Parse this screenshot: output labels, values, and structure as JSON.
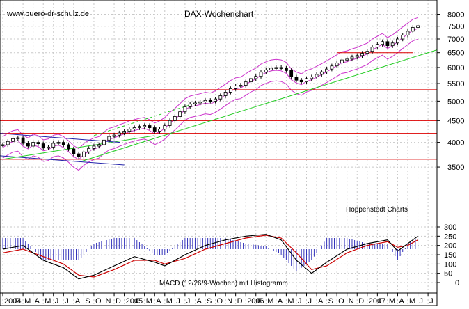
{
  "watermark": "www.buero-dr-schulz.de",
  "chart_title": "DAX-Wochenchart",
  "source_label": "Hoppenstedt Charts",
  "indicator_label": "MACD (12/26/9-Wochen) mit Histogramm",
  "colors": {
    "background": "#ffffff",
    "grid": "#c8c8c8",
    "candle": "#000000",
    "bollinger": "#cc33cc",
    "trendline": "#22cc22",
    "support_line": "#dd0000",
    "channel_line": "#2222aa",
    "macd_line": "#000000",
    "signal_line": "#cc0000",
    "histogram": "#3333bb"
  },
  "chart_data": [
    {
      "type": "candlestick",
      "title": "DAX-Wochenchart",
      "yscale": "log",
      "ylim": [
        2900,
        8200
      ],
      "yticks": [
        8000,
        7500,
        7000,
        6500,
        6000,
        5500,
        5000,
        4500,
        4000,
        3500
      ],
      "x_axis_labels": [
        "2004",
        "F",
        "M",
        "A",
        "M",
        "J",
        "J",
        "A",
        "S",
        "O",
        "N",
        "D",
        "2005",
        "F",
        "M",
        "A",
        "M",
        "J",
        "J",
        "A",
        "S",
        "O",
        "N",
        "D",
        "2006",
        "F",
        "M",
        "A",
        "M",
        "J",
        "J",
        "A",
        "S",
        "O",
        "N",
        "D",
        "2007",
        "F",
        "M",
        "A",
        "M",
        "J",
        "J"
      ],
      "x_tick_months": [
        0,
        1,
        2,
        3,
        4,
        5,
        6,
        7,
        8,
        9,
        10,
        11,
        12,
        13,
        14,
        15,
        16,
        17,
        18,
        19,
        20,
        21,
        22,
        23,
        24,
        25,
        26,
        27,
        28,
        29,
        30,
        31,
        32,
        33,
        34,
        35,
        36,
        37,
        38,
        39,
        40,
        41,
        42
      ],
      "series": [
        {
          "name": "DAX weekly close (approx.)",
          "points": [
            [
              0,
              3950
            ],
            [
              0.5,
              4020
            ],
            [
              1,
              4080
            ],
            [
              1.5,
              4100
            ],
            [
              2,
              3980
            ],
            [
              2.5,
              3920
            ],
            [
              3,
              4000
            ],
            [
              3.5,
              3970
            ],
            [
              4,
              3880
            ],
            [
              4.5,
              3900
            ],
            [
              5,
              3980
            ],
            [
              5.5,
              4000
            ],
            [
              6,
              3950
            ],
            [
              6.5,
              3860
            ],
            [
              7,
              3760
            ],
            [
              7.5,
              3700
            ],
            [
              8,
              3800
            ],
            [
              8.5,
              3870
            ],
            [
              9,
              3920
            ],
            [
              9.5,
              3950
            ],
            [
              10,
              4050
            ],
            [
              10.5,
              4130
            ],
            [
              11,
              4160
            ],
            [
              11.5,
              4210
            ],
            [
              12,
              4250
            ],
            [
              12.5,
              4300
            ],
            [
              13,
              4330
            ],
            [
              13.5,
              4360
            ],
            [
              14,
              4380
            ],
            [
              14.5,
              4330
            ],
            [
              15,
              4250
            ],
            [
              15.5,
              4300
            ],
            [
              16,
              4380
            ],
            [
              16.5,
              4500
            ],
            [
              17,
              4600
            ],
            [
              17.5,
              4720
            ],
            [
              18,
              4850
            ],
            [
              18.5,
              4920
            ],
            [
              19,
              4950
            ],
            [
              19.5,
              4980
            ],
            [
              20,
              5020
            ],
            [
              20.5,
              5000
            ],
            [
              21,
              5060
            ],
            [
              21.5,
              5150
            ],
            [
              22,
              5250
            ],
            [
              22.5,
              5350
            ],
            [
              23,
              5430
            ],
            [
              23.5,
              5450
            ],
            [
              24,
              5550
            ],
            [
              24.5,
              5650
            ],
            [
              25,
              5720
            ],
            [
              25.5,
              5850
            ],
            [
              26,
              5920
            ],
            [
              26.5,
              5980
            ],
            [
              27,
              6000
            ],
            [
              27.5,
              5980
            ],
            [
              28,
              5900
            ],
            [
              28.5,
              5700
            ],
            [
              29,
              5600
            ],
            [
              29.5,
              5550
            ],
            [
              30,
              5650
            ],
            [
              30.5,
              5700
            ],
            [
              31,
              5780
            ],
            [
              31.5,
              5860
            ],
            [
              32,
              5950
            ],
            [
              32.5,
              6050
            ],
            [
              33,
              6150
            ],
            [
              33.5,
              6250
            ],
            [
              34,
              6280
            ],
            [
              34.5,
              6350
            ],
            [
              35,
              6400
            ],
            [
              35.5,
              6480
            ],
            [
              36,
              6550
            ],
            [
              36.5,
              6700
            ],
            [
              37,
              6800
            ],
            [
              37.5,
              6900
            ],
            [
              38,
              6750
            ],
            [
              38.5,
              6850
            ],
            [
              39,
              7000
            ],
            [
              39.5,
              7150
            ],
            [
              40,
              7300
            ],
            [
              40.5,
              7450
            ],
            [
              41,
              7520
            ]
          ]
        }
      ],
      "horizontal_lines": [
        4500,
        4200,
        3650,
        5320,
        6500
      ],
      "annotations": [
        "green uptrend lines",
        "magenta Bollinger bands",
        "blue downward channel 2004"
      ]
    },
    {
      "type": "bar_line",
      "title": "MACD (12/26/9-Wochen) mit Histogramm",
      "ylim": [
        -40,
        320
      ],
      "yticks": [
        300,
        250,
        200,
        150,
        100,
        50,
        0
      ],
      "series": [
        {
          "name": "MACD",
          "points": [
            [
              0,
              180
            ],
            [
              2,
              200
            ],
            [
              4,
              120
            ],
            [
              6,
              80
            ],
            [
              7.5,
              20
            ],
            [
              9,
              40
            ],
            [
              11,
              90
            ],
            [
              13,
              140
            ],
            [
              15,
              110
            ],
            [
              16,
              90
            ],
            [
              18,
              150
            ],
            [
              20,
              200
            ],
            [
              22,
              230
            ],
            [
              24,
              250
            ],
            [
              26,
              260
            ],
            [
              27.5,
              230
            ],
            [
              29,
              120
            ],
            [
              30.5,
              50
            ],
            [
              32,
              110
            ],
            [
              34,
              180
            ],
            [
              36,
              210
            ],
            [
              38,
              230
            ],
            [
              39,
              170
            ],
            [
              40,
              210
            ],
            [
              41,
              250
            ]
          ]
        },
        {
          "name": "Signal",
          "points": [
            [
              0,
              160
            ],
            [
              2,
              180
            ],
            [
              4,
              140
            ],
            [
              6,
              100
            ],
            [
              7.5,
              40
            ],
            [
              9,
              30
            ],
            [
              11,
              70
            ],
            [
              13,
              120
            ],
            [
              15,
              120
            ],
            [
              16,
              100
            ],
            [
              18,
              130
            ],
            [
              20,
              180
            ],
            [
              22,
              210
            ],
            [
              24,
              240
            ],
            [
              26,
              255
            ],
            [
              27.5,
              240
            ],
            [
              29,
              160
            ],
            [
              30.5,
              70
            ],
            [
              32,
              90
            ],
            [
              34,
              160
            ],
            [
              36,
              200
            ],
            [
              38,
              220
            ],
            [
              39,
              190
            ],
            [
              40,
              200
            ],
            [
              41,
              230
            ]
          ]
        }
      ]
    }
  ]
}
